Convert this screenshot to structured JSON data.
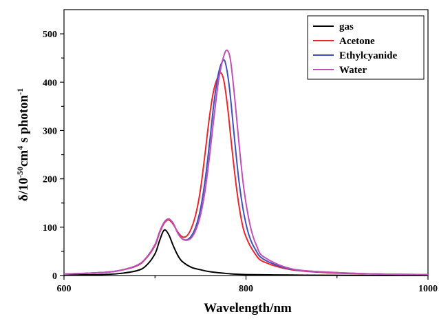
{
  "chart_data": {
    "type": "line",
    "xlabel": "Wavelength/nm",
    "ylabel": {
      "prefix": "δ/10",
      "exp1": "-50",
      "mid1": "cm",
      "exp2": "4",
      "mid2": " s photon",
      "exp3": "-1"
    },
    "xlim": [
      600,
      1000
    ],
    "ylim": [
      0,
      550
    ],
    "xticks": [
      "600",
      "800",
      "1000"
    ],
    "yticks": [
      "0",
      "100",
      "200",
      "300",
      "400",
      "500"
    ],
    "legend_position": "top-right",
    "series": [
      {
        "name": "gas",
        "color": "#000000",
        "x": [
          600,
          640,
          660,
          680,
          690,
          700,
          705,
          710,
          715,
          720,
          725,
          730,
          740,
          750,
          760,
          780,
          800,
          850,
          900,
          1000
        ],
        "y": [
          1,
          2,
          4,
          10,
          20,
          45,
          72,
          94,
          85,
          62,
          42,
          29,
          17,
          12,
          8,
          4,
          2,
          1,
          0.5,
          0
        ]
      },
      {
        "name": "Acetone",
        "color": "#e8262b",
        "x": [
          600,
          640,
          660,
          680,
          690,
          700,
          705,
          710,
          715,
          720,
          725,
          730,
          735,
          740,
          745,
          750,
          755,
          760,
          765,
          770,
          773,
          776,
          780,
          785,
          790,
          795,
          800,
          810,
          820,
          850,
          900,
          950,
          1000
        ],
        "y": [
          3,
          6,
          10,
          20,
          35,
          62,
          88,
          108,
          115,
          106,
          90,
          80,
          82,
          98,
          128,
          178,
          252,
          330,
          387,
          414,
          418,
          400,
          345,
          255,
          175,
          115,
          80,
          45,
          28,
          12,
          5,
          3,
          2
        ]
      },
      {
        "name": "Ethylcyanide",
        "color": "#4050b8",
        "x": [
          600,
          640,
          660,
          680,
          690,
          700,
          705,
          710,
          715,
          720,
          725,
          730,
          735,
          740,
          745,
          750,
          755,
          760,
          765,
          770,
          775,
          778,
          782,
          787,
          792,
          797,
          803,
          810,
          820,
          850,
          900,
          950,
          1000
        ],
        "y": [
          3,
          6,
          10,
          21,
          36,
          64,
          90,
          110,
          117,
          108,
          88,
          76,
          74,
          82,
          102,
          138,
          196,
          275,
          360,
          420,
          445,
          435,
          385,
          290,
          200,
          135,
          85,
          55,
          33,
          13,
          6,
          3,
          2
        ]
      },
      {
        "name": "Water",
        "color": "#c050b8",
        "x": [
          600,
          640,
          660,
          680,
          690,
          700,
          705,
          710,
          715,
          720,
          725,
          730,
          735,
          740,
          745,
          750,
          755,
          760,
          765,
          770,
          775,
          779,
          783,
          788,
          793,
          798,
          805,
          812,
          820,
          850,
          900,
          950,
          1000
        ],
        "y": [
          3,
          6,
          10,
          21,
          36,
          64,
          90,
          110,
          117,
          108,
          88,
          76,
          73,
          78,
          95,
          125,
          175,
          248,
          330,
          405,
          450,
          466,
          445,
          360,
          260,
          175,
          100,
          60,
          38,
          14,
          6,
          3,
          2
        ]
      }
    ]
  }
}
